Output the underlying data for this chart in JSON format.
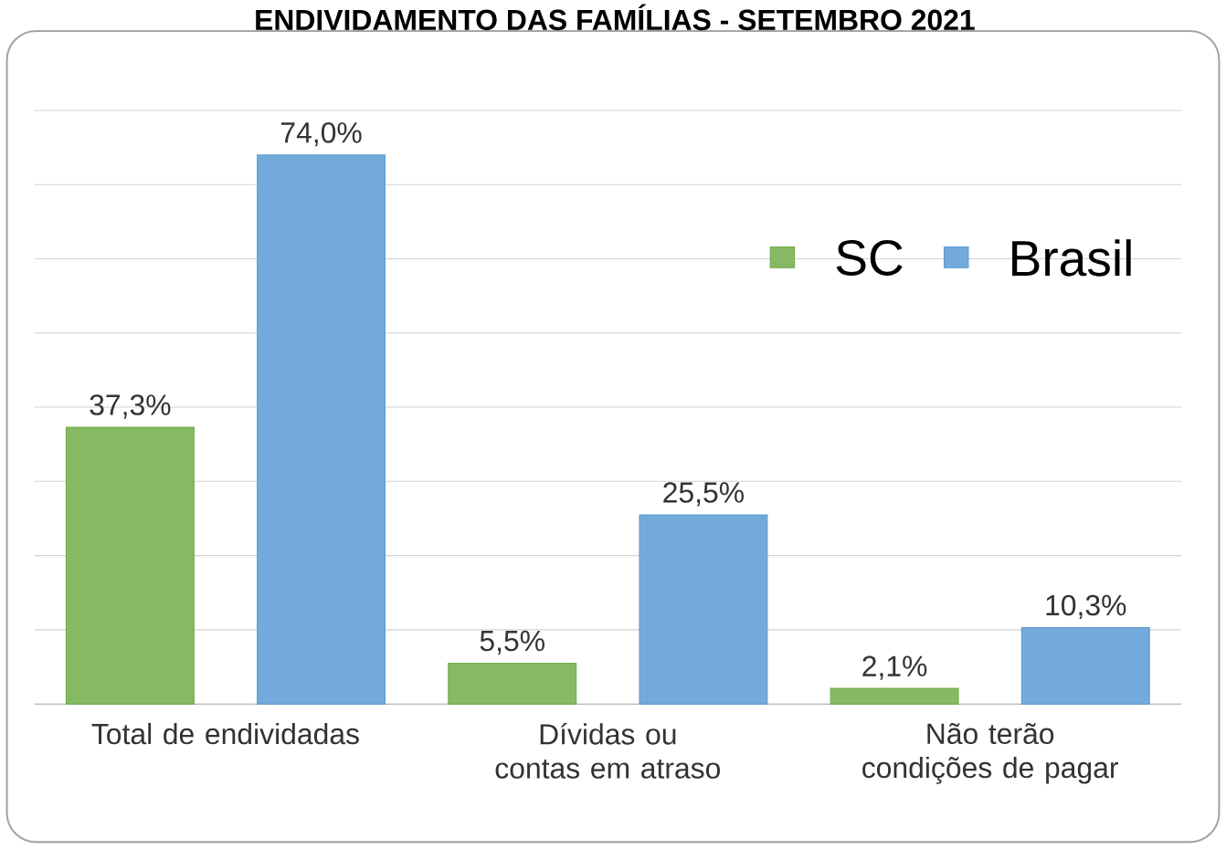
{
  "chart_data": {
    "type": "bar",
    "title": "ENDIVIDAMENTO DAS FAMÍLIAS - SETEMBRO 2021",
    "categories": [
      "Total de endividadas",
      "Dívidas ou contas em atraso",
      "Não terão condições de pagar"
    ],
    "series": [
      {
        "name": "SC",
        "color": "#70ad47",
        "values": [
          37.3,
          5.5,
          2.1
        ],
        "value_labels": [
          "37,3%",
          "5,5%",
          "2,1%"
        ]
      },
      {
        "name": "Brasil",
        "color": "#5b9bd5",
        "values": [
          74.0,
          25.5,
          10.3
        ],
        "value_labels": [
          "74,0%",
          "25,5%",
          "10,3%"
        ]
      }
    ],
    "ylim": [
      0,
      80
    ],
    "yticks": [
      {
        "value": 0,
        "label": null
      },
      {
        "value": 10,
        "label": null
      },
      {
        "value": 20,
        "label": null
      },
      {
        "value": 30,
        "label": null
      },
      {
        "value": 40,
        "label": null
      },
      {
        "value": 50,
        "label": null
      },
      {
        "value": 60,
        "label": null
      },
      {
        "value": 70,
        "label": null
      },
      {
        "value": 80,
        "label": null
      }
    ],
    "tick_labels": "x",
    "grid": "y",
    "legend": "top right"
  }
}
